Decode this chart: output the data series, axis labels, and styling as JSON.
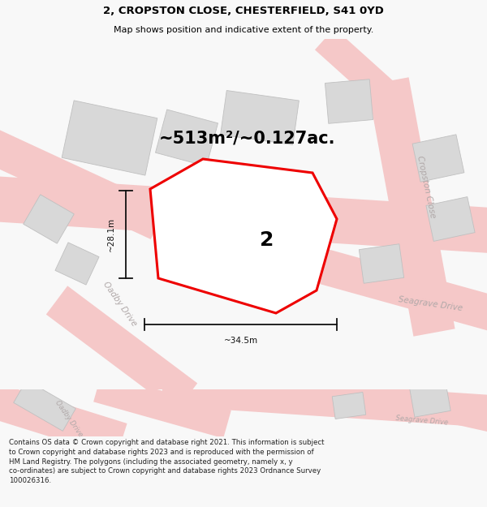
{
  "title": "2, CROPSTON CLOSE, CHESTERFIELD, S41 0YD",
  "subtitle": "Map shows position and indicative extent of the property.",
  "area_text": "~513m²/~0.127ac.",
  "width_label": "~34.5m",
  "height_label": "~28.1m",
  "number_label": "2",
  "footer": "Contains OS data © Crown copyright and database right 2021. This information is subject to Crown copyright and database rights 2023 and is reproduced with the permission of HM Land Registry. The polygons (including the associated geometry, namely x, y co-ordinates) are subject to Crown copyright and database rights 2023 Ordnance Survey 100026316.",
  "bg_color": "#f8f8f8",
  "map_bg": "#eeecec",
  "road_color": "#f5c8c8",
  "building_color": "#d8d8d8",
  "building_edge_color": "#c0c0c0",
  "road_label_color": "#b0a8a8",
  "plot_edge_color": "#ee0000",
  "plot_fill_color": "#ffffff",
  "dim_line_color": "#111111",
  "title_fontsize": 9.5,
  "subtitle_fontsize": 8,
  "area_fontsize": 15,
  "number_fontsize": 18,
  "footer_fontsize": 6.2,
  "road_label_fontsize": 7.5,
  "dim_fontsize": 7.5
}
